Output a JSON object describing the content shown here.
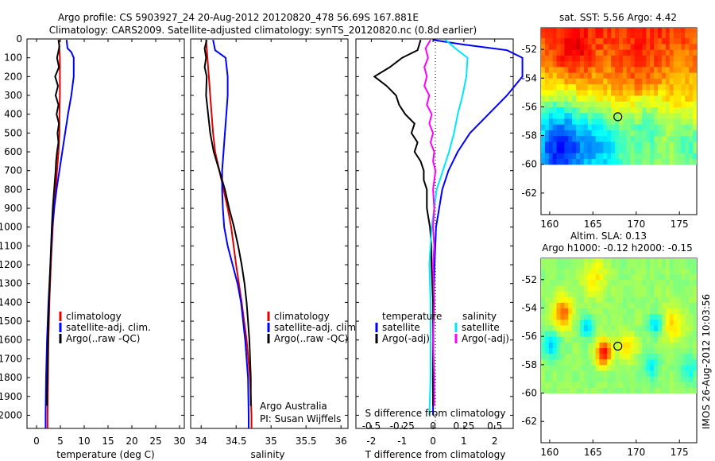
{
  "title": {
    "line1": "Argo profile: CS 5903927_24 20-Aug-2012 20120820_478 56.69S 167.881E",
    "line2": "Climatology: CARS2009. Satellite-adjusted climatology: synTS_20120820.nc (0.8d earlier)"
  },
  "colors": {
    "climatology": "#dd0000",
    "satellite": "#0000ff",
    "argo": "#000000",
    "cyan": "#00e6ff",
    "magenta": "#ff00ff"
  },
  "chart_data": [
    {
      "type": "line",
      "xlabel": "temperature (deg C)",
      "xlim": [
        -2,
        31
      ],
      "xticks": [
        "0",
        "5",
        "10",
        "15",
        "20",
        "25",
        "30"
      ],
      "ylim": [
        0,
        2070
      ],
      "yticks": [
        "0",
        "100",
        "200",
        "300",
        "400",
        "500",
        "600",
        "700",
        "800",
        "900",
        "1000",
        "1100",
        "1200",
        "1300",
        "1400",
        "1500",
        "1600",
        "1700",
        "1800",
        "1900",
        "2000"
      ],
      "legend": [
        "climatology",
        "satellite-adj. clim.",
        "Argo(..raw -QC)"
      ],
      "series": [
        {
          "name": "climatology",
          "y": [
            5,
            100,
            200,
            300,
            400,
            500,
            600,
            700,
            800,
            900,
            1000,
            1200,
            1400,
            1600,
            1800,
            2000,
            2070
          ],
          "x": [
            4.7,
            4.9,
            4.9,
            4.9,
            4.8,
            4.8,
            4.6,
            4.3,
            4.0,
            3.7,
            3.4,
            3.0,
            2.7,
            2.5,
            2.4,
            2.3,
            2.3
          ]
        },
        {
          "name": "satellite-adj. clim.",
          "y": [
            5,
            50,
            70,
            100,
            200,
            300,
            400,
            500,
            600,
            700,
            800,
            900,
            1000,
            1200,
            1400,
            1600,
            1800,
            2000,
            2070
          ],
          "x": [
            6.3,
            6.5,
            7.3,
            7.8,
            7.8,
            7.3,
            6.6,
            6.0,
            5.4,
            4.8,
            4.2,
            3.7,
            3.3,
            2.9,
            2.5,
            2.2,
            2.0,
            1.9,
            1.9
          ]
        },
        {
          "name": "Argo(..raw -QC)",
          "y": [
            5,
            40,
            100,
            150,
            200,
            250,
            300,
            350,
            400,
            450,
            500,
            550,
            600,
            650,
            700,
            800,
            900,
            1000,
            1200,
            1400,
            1600,
            1800,
            1900,
            1950
          ],
          "x": [
            4.6,
            4.8,
            4.3,
            4.7,
            3.9,
            4.5,
            4.0,
            4.6,
            4.2,
            4.7,
            4.4,
            4.6,
            4.3,
            4.1,
            4.0,
            3.7,
            3.4,
            3.2,
            2.9,
            2.6,
            2.4,
            2.3,
            2.2,
            2.2
          ]
        }
      ]
    },
    {
      "type": "line",
      "xlabel": "salinity",
      "xlim": [
        33.85,
        36.1
      ],
      "xticks": [
        "34",
        "34.5",
        "35",
        "35.5",
        "36"
      ],
      "ylim": [
        0,
        2070
      ],
      "legend": [
        "climatology",
        "satellite-adj. clim.",
        "Argo(..raw -QC)"
      ],
      "annotation": [
        "Argo Australia",
        "PI: Susan Wijffels"
      ],
      "series": [
        {
          "name": "climatology",
          "y": [
            5,
            100,
            200,
            300,
            400,
            500,
            600,
            700,
            800,
            900,
            1000,
            1200,
            1400,
            1600,
            1800,
            2000,
            2070
          ],
          "x": [
            34.07,
            34.09,
            34.11,
            34.13,
            34.15,
            34.17,
            34.2,
            34.26,
            34.32,
            34.38,
            34.43,
            34.5,
            34.58,
            34.65,
            34.7,
            34.72,
            34.72
          ]
        },
        {
          "name": "satellite-adj. clim.",
          "y": [
            5,
            60,
            100,
            200,
            300,
            400,
            500,
            600,
            700,
            800,
            900,
            1000,
            1100,
            1200,
            1300,
            1400,
            1600,
            1800,
            2000,
            2070
          ],
          "x": [
            34.17,
            34.2,
            34.35,
            34.38,
            34.38,
            34.36,
            34.34,
            34.32,
            34.3,
            34.3,
            34.31,
            34.33,
            34.38,
            34.45,
            34.52,
            34.57,
            34.63,
            34.67,
            34.68,
            34.68
          ]
        },
        {
          "name": "Argo(..raw -QC)",
          "y": [
            5,
            50,
            100,
            150,
            200,
            300,
            400,
            500,
            600,
            700,
            800,
            900,
            1000,
            1100,
            1200,
            1300,
            1400,
            1500,
            1600,
            1700,
            1800,
            1900,
            1950
          ],
          "x": [
            34.08,
            34.05,
            34.07,
            34.05,
            34.08,
            34.07,
            34.1,
            34.13,
            34.18,
            34.26,
            34.34,
            34.4,
            34.47,
            34.53,
            34.58,
            34.62,
            34.65,
            34.67,
            34.69,
            34.7,
            34.71,
            34.71,
            34.71
          ]
        }
      ]
    },
    {
      "type": "line",
      "xlabel": "T difference from climatology",
      "xlabel_top": "S difference from climatology",
      "xlim": [
        -2.5,
        2.6
      ],
      "xticks": [
        "-2",
        "-1",
        "0",
        "1",
        "2"
      ],
      "xticks_top": [
        "-0.5",
        "-0.25",
        "0",
        "0.25",
        "0.5"
      ],
      "ylim": [
        0,
        2070
      ],
      "legend_left": {
        "title": "temperature",
        "entries": [
          "satellite",
          "Argo(-adj)"
        ]
      },
      "legend_right": {
        "title": "salinity",
        "entries": [
          "satellite",
          "Argo(-adj)"
        ]
      },
      "series": [
        {
          "name": "temperature satellite",
          "y": [
            5,
            30,
            60,
            100,
            200,
            300,
            400,
            500,
            600,
            700,
            800,
            900,
            1000,
            1200,
            1400,
            1600,
            1800,
            2000
          ],
          "x": [
            0,
            1.0,
            2.4,
            2.9,
            2.9,
            2.4,
            1.8,
            1.2,
            0.8,
            0.5,
            0.3,
            0.2,
            0.1,
            0.05,
            0.02,
            0.01,
            0,
            0
          ]
        },
        {
          "name": "temperature Argo(-adj)",
          "y": [
            5,
            60,
            100,
            150,
            200,
            250,
            300,
            350,
            400,
            450,
            500,
            550,
            600,
            650,
            700,
            750,
            800,
            900,
            1000,
            1100,
            1200,
            1400,
            1600,
            1800,
            1950
          ],
          "x": [
            -0.4,
            -0.5,
            -1.0,
            -1.4,
            -1.9,
            -1.5,
            -1.2,
            -1.1,
            -0.9,
            -0.6,
            -0.7,
            -0.5,
            -0.6,
            -0.4,
            -0.3,
            -0.3,
            -0.2,
            -0.2,
            -0.1,
            -0.05,
            -0.05,
            0,
            0,
            0,
            0
          ]
        },
        {
          "name": "salinity satellite",
          "y": [
            5,
            60,
            100,
            200,
            300,
            400,
            500,
            600,
            700,
            800,
            900,
            1000,
            1200,
            1400,
            1600,
            1800,
            2000
          ],
          "x": [
            0.1,
            0.2,
            0.28,
            0.27,
            0.24,
            0.2,
            0.17,
            0.13,
            0.08,
            0.03,
            0.01,
            -0.01,
            -0.03,
            -0.02,
            -0.02,
            -0.02,
            -0.03
          ]
        },
        {
          "name": "salinity Argo(-adj)",
          "y": [
            5,
            50,
            100,
            150,
            200,
            250,
            300,
            350,
            400,
            450,
            500,
            550,
            600,
            650,
            700,
            800,
            900,
            1000,
            1100,
            1200,
            1400,
            1600,
            1800,
            1950
          ],
          "x": [
            -0.02,
            -0.06,
            -0.04,
            -0.07,
            -0.05,
            -0.07,
            -0.03,
            -0.05,
            -0.01,
            -0.03,
            0,
            -0.02,
            0.01,
            0,
            0.02,
            0,
            0.01,
            0,
            0.01,
            0,
            0.01,
            0,
            0.01,
            0.01
          ]
        }
      ]
    },
    {
      "type": "heatmap",
      "title": "sat. SST: 5.56 Argo: 4.42",
      "xlim": [
        159,
        177
      ],
      "xticks": [
        "160",
        "165",
        "170",
        "175"
      ],
      "ylim": [
        -63.5,
        -50.5
      ],
      "yticks": [
        "-52",
        "-54",
        "-56",
        "-58",
        "-60",
        "-62"
      ],
      "data_south_edge": -60,
      "marker": {
        "lon": 167.881,
        "lat": -56.69
      }
    },
    {
      "type": "heatmap",
      "title_line1": "Altim. SLA: 0.13",
      "title_line2": "Argo h1000: -0.12 h2000: -0.15",
      "xlim": [
        159,
        177
      ],
      "xticks": [
        "160",
        "165",
        "170",
        "175"
      ],
      "ylim": [
        -63.5,
        -50.5
      ],
      "yticks": [
        "-52",
        "-54",
        "-56",
        "-58",
        "-60",
        "-62"
      ],
      "data_south_edge": -60,
      "marker": {
        "lon": 167.881,
        "lat": -56.69
      }
    }
  ],
  "footer": "IMOS 26-Aug-2012 10:03:56"
}
